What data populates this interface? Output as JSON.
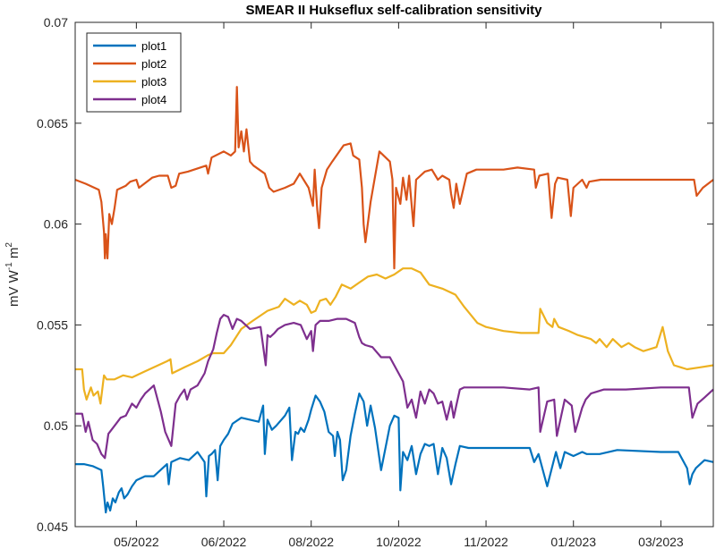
{
  "chart_data": {
    "type": "line",
    "title": "SMEAR II Hukseflux self-calibration sensitivity",
    "xlabel": "",
    "ylabel": "mV W",
    "ylabel_sup1": "-1",
    "ylabel_mid": " m",
    "ylabel_sup2": "2",
    "x_units": "months index (0 = 05/2022 tick)",
    "xlim": [
      -0.7,
      6.6
    ],
    "ylim": [
      0.045,
      0.07
    ],
    "xticks": [
      0,
      1,
      2,
      3,
      4,
      5,
      6
    ],
    "xtick_labels": [
      "05/2022",
      "06/2022",
      "08/2022",
      "10/2022",
      "11/2022",
      "01/2023",
      "03/2023"
    ],
    "yticks": [
      0.045,
      0.05,
      0.055,
      0.06,
      0.065,
      0.07
    ],
    "ytick_labels": [
      "0.045",
      "0.05",
      "0.055",
      "0.06",
      "0.065",
      "0.07"
    ],
    "grid": false,
    "legend_position": "top-left",
    "series": [
      {
        "name": "plot1",
        "color": "#0072BD",
        "x": [
          -0.7,
          -0.6,
          -0.5,
          -0.4,
          -0.38,
          -0.35,
          -0.33,
          -0.3,
          -0.27,
          -0.24,
          -0.2,
          -0.17,
          -0.14,
          -0.1,
          -0.05,
          0.0,
          0.1,
          0.2,
          0.3,
          0.35,
          0.37,
          0.4,
          0.5,
          0.6,
          0.7,
          0.78,
          0.8,
          0.83,
          0.86,
          0.9,
          0.93,
          0.96,
          1.0,
          1.05,
          1.1,
          1.2,
          1.3,
          1.4,
          1.45,
          1.47,
          1.5,
          1.55,
          1.6,
          1.7,
          1.75,
          1.78,
          1.82,
          1.85,
          1.88,
          1.92,
          1.97,
          2.0,
          2.05,
          2.1,
          2.15,
          2.2,
          2.25,
          2.27,
          2.3,
          2.33,
          2.36,
          2.4,
          2.45,
          2.5,
          2.55,
          2.6,
          2.64,
          2.68,
          2.73,
          2.8,
          2.9,
          2.95,
          3.0,
          3.02,
          3.05,
          3.1,
          3.15,
          3.2,
          3.25,
          3.3,
          3.35,
          3.4,
          3.45,
          3.5,
          3.55,
          3.6,
          3.65,
          3.7,
          3.8,
          4.0,
          4.2,
          4.5,
          4.55,
          4.6,
          4.7,
          4.8,
          4.85,
          4.9,
          5.0,
          5.1,
          5.15,
          5.2,
          5.3,
          5.5,
          6.0,
          6.2,
          6.3,
          6.33,
          6.36,
          6.4,
          6.5,
          6.6
        ],
        "values": [
          0.0481,
          0.0481,
          0.048,
          0.0478,
          0.047,
          0.0457,
          0.0462,
          0.0458,
          0.0464,
          0.0462,
          0.0467,
          0.0469,
          0.0464,
          0.0466,
          0.047,
          0.0473,
          0.0475,
          0.0475,
          0.0479,
          0.0481,
          0.0471,
          0.0482,
          0.0484,
          0.0483,
          0.0487,
          0.0482,
          0.0465,
          0.0485,
          0.0486,
          0.0488,
          0.0473,
          0.049,
          0.0493,
          0.0496,
          0.0501,
          0.0504,
          0.0503,
          0.0502,
          0.051,
          0.0486,
          0.0503,
          0.0498,
          0.05,
          0.0505,
          0.0509,
          0.0483,
          0.0497,
          0.0496,
          0.0499,
          0.0497,
          0.0503,
          0.0508,
          0.0515,
          0.0512,
          0.0507,
          0.0497,
          0.0495,
          0.0485,
          0.0497,
          0.0493,
          0.0473,
          0.0478,
          0.0495,
          0.0506,
          0.0516,
          0.0512,
          0.05,
          0.051,
          0.0499,
          0.0478,
          0.05,
          0.0505,
          0.0504,
          0.0468,
          0.0487,
          0.0483,
          0.049,
          0.0476,
          0.0486,
          0.0491,
          0.049,
          0.0491,
          0.0476,
          0.0489,
          0.0484,
          0.0471,
          0.0481,
          0.049,
          0.0489,
          0.0489,
          0.0489,
          0.0489,
          0.0482,
          0.0486,
          0.047,
          0.0487,
          0.0479,
          0.0487,
          0.0485,
          0.0487,
          0.0486,
          0.0486,
          0.0486,
          0.0488,
          0.0487,
          0.0487,
          0.0479,
          0.0471,
          0.0476,
          0.0479,
          0.0483,
          0.0482
        ]
      },
      {
        "name": "plot2",
        "color": "#D95319",
        "x": [
          -0.7,
          -0.58,
          -0.43,
          -0.4,
          -0.37,
          -0.36,
          -0.35,
          -0.33,
          -0.31,
          -0.28,
          -0.25,
          -0.22,
          -0.12,
          -0.07,
          0.0,
          0.03,
          0.18,
          0.26,
          0.36,
          0.4,
          0.45,
          0.49,
          0.59,
          0.8,
          0.82,
          0.86,
          1.0,
          1.08,
          1.13,
          1.15,
          1.17,
          1.2,
          1.23,
          1.26,
          1.3,
          1.34,
          1.47,
          1.52,
          1.57,
          1.7,
          1.8,
          1.87,
          1.97,
          2.02,
          2.04,
          2.07,
          2.09,
          2.12,
          2.18,
          2.24,
          2.37,
          2.45,
          2.48,
          2.55,
          2.58,
          2.6,
          2.62,
          2.68,
          2.78,
          2.9,
          2.93,
          2.95,
          2.97,
          3.02,
          3.05,
          3.09,
          3.12,
          3.17,
          3.2,
          3.3,
          3.38,
          3.45,
          3.5,
          3.58,
          3.6,
          3.63,
          3.66,
          3.7,
          3.78,
          3.89,
          4.04,
          4.2,
          4.36,
          4.55,
          4.57,
          4.61,
          4.71,
          4.75,
          4.79,
          4.82,
          4.93,
          4.97,
          5.0,
          5.1,
          5.15,
          5.18,
          5.31,
          5.8,
          6.38,
          6.41,
          6.48,
          6.6
        ],
        "values": [
          0.0622,
          0.062,
          0.0617,
          0.0611,
          0.0596,
          0.0583,
          0.0595,
          0.0583,
          0.0605,
          0.06,
          0.0608,
          0.0617,
          0.0619,
          0.0621,
          0.0622,
          0.0618,
          0.0623,
          0.0624,
          0.0624,
          0.0618,
          0.0619,
          0.0625,
          0.0626,
          0.0629,
          0.0625,
          0.0633,
          0.0636,
          0.0634,
          0.0636,
          0.0668,
          0.0638,
          0.0646,
          0.0636,
          0.0647,
          0.0631,
          0.0629,
          0.0625,
          0.0618,
          0.0616,
          0.0618,
          0.062,
          0.0625,
          0.0618,
          0.0609,
          0.0627,
          0.0607,
          0.0598,
          0.0618,
          0.0627,
          0.0631,
          0.0639,
          0.064,
          0.0634,
          0.0632,
          0.0618,
          0.06,
          0.0591,
          0.0611,
          0.0636,
          0.0631,
          0.0622,
          0.0578,
          0.0618,
          0.061,
          0.0623,
          0.0612,
          0.0624,
          0.0599,
          0.0622,
          0.0626,
          0.0627,
          0.0622,
          0.0624,
          0.0622,
          0.0615,
          0.0608,
          0.062,
          0.061,
          0.0625,
          0.0627,
          0.0627,
          0.0627,
          0.0628,
          0.0627,
          0.0618,
          0.0624,
          0.0625,
          0.0603,
          0.062,
          0.0623,
          0.0622,
          0.0604,
          0.0618,
          0.0622,
          0.0618,
          0.0621,
          0.0622,
          0.0622,
          0.0622,
          0.0614,
          0.0618,
          0.0622
        ]
      },
      {
        "name": "plot3",
        "color": "#EDB120",
        "x": [
          -0.7,
          -0.62,
          -0.6,
          -0.57,
          -0.52,
          -0.49,
          -0.44,
          -0.41,
          -0.37,
          -0.34,
          -0.25,
          -0.15,
          -0.05,
          0.1,
          0.25,
          0.35,
          0.39,
          0.41,
          0.55,
          0.7,
          0.82,
          0.88,
          1.0,
          1.08,
          1.2,
          1.33,
          1.5,
          1.63,
          1.7,
          1.8,
          1.87,
          1.95,
          2.0,
          2.05,
          2.1,
          2.17,
          2.22,
          2.28,
          2.35,
          2.45,
          2.55,
          2.65,
          2.75,
          2.85,
          2.95,
          3.05,
          3.15,
          3.25,
          3.35,
          3.5,
          3.65,
          3.75,
          3.9,
          4.0,
          4.2,
          4.4,
          4.6,
          4.62,
          4.7,
          4.76,
          4.78,
          4.83,
          4.95,
          5.05,
          5.2,
          5.26,
          5.3,
          5.38,
          5.45,
          5.55,
          5.63,
          5.7,
          5.8,
          5.95,
          6.02,
          6.08,
          6.15,
          6.3,
          6.45,
          6.6
        ],
        "values": [
          0.0528,
          0.0528,
          0.0518,
          0.0513,
          0.0519,
          0.0515,
          0.0517,
          0.0511,
          0.0525,
          0.0523,
          0.0523,
          0.0525,
          0.0524,
          0.0527,
          0.053,
          0.0532,
          0.0533,
          0.0526,
          0.0529,
          0.0532,
          0.0535,
          0.0536,
          0.0536,
          0.054,
          0.0548,
          0.0552,
          0.0557,
          0.0559,
          0.0563,
          0.056,
          0.0562,
          0.056,
          0.0556,
          0.0557,
          0.0562,
          0.0563,
          0.056,
          0.0564,
          0.057,
          0.0568,
          0.0571,
          0.0574,
          0.0575,
          0.0573,
          0.0575,
          0.0578,
          0.0578,
          0.0576,
          0.057,
          0.0568,
          0.0565,
          0.0559,
          0.0551,
          0.0549,
          0.0547,
          0.0546,
          0.0546,
          0.0558,
          0.0551,
          0.0549,
          0.0553,
          0.0549,
          0.0547,
          0.0545,
          0.0543,
          0.0541,
          0.0543,
          0.0539,
          0.0543,
          0.0539,
          0.0541,
          0.0539,
          0.0537,
          0.0539,
          0.0549,
          0.0537,
          0.053,
          0.0528,
          0.0529,
          0.053
        ]
      },
      {
        "name": "plot4",
        "color": "#7E2F8E",
        "x": [
          -0.7,
          -0.62,
          -0.58,
          -0.55,
          -0.5,
          -0.45,
          -0.4,
          -0.36,
          -0.32,
          -0.25,
          -0.18,
          -0.12,
          -0.05,
          0.0,
          0.05,
          0.1,
          0.15,
          0.2,
          0.28,
          0.33,
          0.4,
          0.45,
          0.5,
          0.55,
          0.58,
          0.62,
          0.7,
          0.78,
          0.82,
          0.88,
          0.92,
          0.96,
          1.0,
          1.05,
          1.1,
          1.15,
          1.2,
          1.3,
          1.42,
          1.48,
          1.5,
          1.53,
          1.58,
          1.62,
          1.7,
          1.8,
          1.88,
          1.95,
          2.0,
          2.02,
          2.05,
          2.1,
          2.2,
          2.3,
          2.4,
          2.5,
          2.55,
          2.58,
          2.62,
          2.7,
          2.8,
          2.9,
          3.0,
          3.05,
          3.1,
          3.15,
          3.2,
          3.25,
          3.3,
          3.35,
          3.4,
          3.45,
          3.5,
          3.55,
          3.6,
          3.63,
          3.66,
          3.7,
          3.75,
          3.8,
          3.9,
          4.0,
          4.2,
          4.5,
          4.6,
          4.62,
          4.7,
          4.78,
          4.81,
          4.9,
          4.98,
          5.02,
          5.1,
          5.14,
          5.2,
          5.35,
          5.6,
          6.0,
          6.2,
          6.32,
          6.36,
          6.42,
          6.5,
          6.6
        ],
        "values": [
          0.0506,
          0.0506,
          0.0497,
          0.0502,
          0.0493,
          0.0491,
          0.0486,
          0.0484,
          0.0496,
          0.05,
          0.0504,
          0.0505,
          0.0511,
          0.0509,
          0.0513,
          0.0516,
          0.0518,
          0.052,
          0.0507,
          0.0497,
          0.049,
          0.0511,
          0.0515,
          0.0518,
          0.0513,
          0.0518,
          0.052,
          0.0526,
          0.0532,
          0.0538,
          0.0546,
          0.0553,
          0.0555,
          0.0554,
          0.0548,
          0.0553,
          0.0552,
          0.0548,
          0.0549,
          0.053,
          0.0545,
          0.0544,
          0.0546,
          0.0548,
          0.055,
          0.0551,
          0.055,
          0.0543,
          0.0547,
          0.0537,
          0.055,
          0.0552,
          0.0552,
          0.0553,
          0.0553,
          0.0551,
          0.0544,
          0.0541,
          0.054,
          0.0539,
          0.0534,
          0.0534,
          0.0526,
          0.0522,
          0.0509,
          0.0513,
          0.0504,
          0.0517,
          0.0511,
          0.0518,
          0.0516,
          0.0511,
          0.0512,
          0.0503,
          0.0512,
          0.0504,
          0.051,
          0.0518,
          0.0519,
          0.0519,
          0.0519,
          0.0519,
          0.0519,
          0.0518,
          0.0519,
          0.0497,
          0.0512,
          0.0513,
          0.0495,
          0.0513,
          0.051,
          0.0497,
          0.0509,
          0.0513,
          0.0516,
          0.0518,
          0.0518,
          0.0519,
          0.0519,
          0.0519,
          0.0504,
          0.0511,
          0.0514,
          0.0518
        ]
      }
    ]
  }
}
